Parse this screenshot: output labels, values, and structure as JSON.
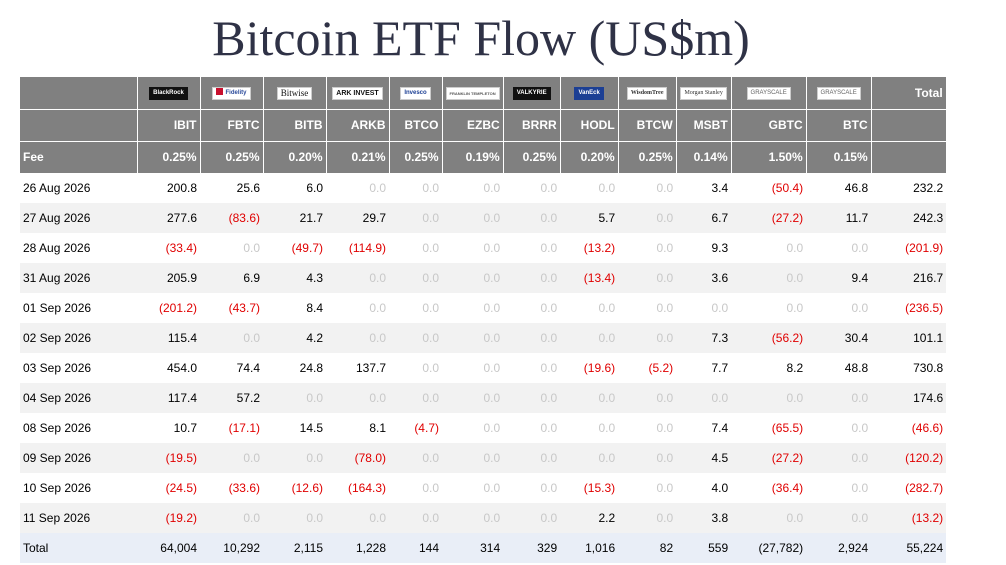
{
  "title": "Bitcoin ETF Flow (US$m)",
  "issuers": [
    {
      "name": "BlackRock",
      "ticker": "IBIT",
      "fee": "0.25%"
    },
    {
      "name": "Fidelity",
      "ticker": "FBTC",
      "fee": "0.25%"
    },
    {
      "name": "Bitwise",
      "ticker": "BITB",
      "fee": "0.20%"
    },
    {
      "name": "ARK INVEST",
      "ticker": "ARKB",
      "fee": "0.21%"
    },
    {
      "name": "Invesco",
      "ticker": "BTCO",
      "fee": "0.25%"
    },
    {
      "name": "FRANKLIN TEMPLETON",
      "ticker": "EZBC",
      "fee": "0.19%"
    },
    {
      "name": "VALKYRIE",
      "ticker": "BRRR",
      "fee": "0.25%"
    },
    {
      "name": "VanEck",
      "ticker": "HODL",
      "fee": "0.20%"
    },
    {
      "name": "WisdomTree",
      "ticker": "BTCW",
      "fee": "0.25%"
    },
    {
      "name": "Morgan Stanley",
      "ticker": "MSBT",
      "fee": "0.14%"
    },
    {
      "name": "GRAYSCALE",
      "ticker": "GBTC",
      "fee": "1.50%"
    },
    {
      "name": "GRAYSCALE",
      "ticker": "BTC",
      "fee": "0.15%"
    }
  ],
  "header": {
    "total_label": "Total",
    "fee_label": "Fee"
  },
  "rows": [
    {
      "date": "26 Aug 2026",
      "values": [
        "200.8",
        "25.6",
        "6.0",
        "0.0",
        "0.0",
        "0.0",
        "0.0",
        "0.0",
        "0.0",
        "3.4",
        "(50.4)",
        "46.8"
      ],
      "total": "232.2"
    },
    {
      "date": "27 Aug 2026",
      "values": [
        "277.6",
        "(83.6)",
        "21.7",
        "29.7",
        "0.0",
        "0.0",
        "0.0",
        "5.7",
        "0.0",
        "6.7",
        "(27.2)",
        "11.7"
      ],
      "total": "242.3"
    },
    {
      "date": "28 Aug 2026",
      "values": [
        "(33.4)",
        "0.0",
        "(49.7)",
        "(114.9)",
        "0.0",
        "0.0",
        "0.0",
        "(13.2)",
        "0.0",
        "9.3",
        "0.0",
        "0.0"
      ],
      "total": "(201.9)"
    },
    {
      "date": "31 Aug 2026",
      "values": [
        "205.9",
        "6.9",
        "4.3",
        "0.0",
        "0.0",
        "0.0",
        "0.0",
        "(13.4)",
        "0.0",
        "3.6",
        "0.0",
        "9.4"
      ],
      "total": "216.7"
    },
    {
      "date": "01 Sep 2026",
      "values": [
        "(201.2)",
        "(43.7)",
        "8.4",
        "0.0",
        "0.0",
        "0.0",
        "0.0",
        "0.0",
        "0.0",
        "0.0",
        "0.0",
        "0.0"
      ],
      "total": "(236.5)"
    },
    {
      "date": "02 Sep 2026",
      "values": [
        "115.4",
        "0.0",
        "4.2",
        "0.0",
        "0.0",
        "0.0",
        "0.0",
        "0.0",
        "0.0",
        "7.3",
        "(56.2)",
        "30.4"
      ],
      "total": "101.1"
    },
    {
      "date": "03 Sep 2026",
      "values": [
        "454.0",
        "74.4",
        "24.8",
        "137.7",
        "0.0",
        "0.0",
        "0.0",
        "(19.6)",
        "(5.2)",
        "7.7",
        "8.2",
        "48.8"
      ],
      "total": "730.8"
    },
    {
      "date": "04 Sep 2026",
      "values": [
        "117.4",
        "57.2",
        "0.0",
        "0.0",
        "0.0",
        "0.0",
        "0.0",
        "0.0",
        "0.0",
        "0.0",
        "0.0",
        "0.0"
      ],
      "total": "174.6"
    },
    {
      "date": "08 Sep 2026",
      "values": [
        "10.7",
        "(17.1)",
        "14.5",
        "8.1",
        "(4.7)",
        "0.0",
        "0.0",
        "0.0",
        "0.0",
        "7.4",
        "(65.5)",
        "0.0"
      ],
      "total": "(46.6)"
    },
    {
      "date": "09 Sep 2026",
      "values": [
        "(19.5)",
        "0.0",
        "0.0",
        "(78.0)",
        "0.0",
        "0.0",
        "0.0",
        "0.0",
        "0.0",
        "4.5",
        "(27.2)",
        "0.0"
      ],
      "total": "(120.2)"
    },
    {
      "date": "10 Sep 2026",
      "values": [
        "(24.5)",
        "(33.6)",
        "(12.6)",
        "(164.3)",
        "0.0",
        "0.0",
        "0.0",
        "(15.3)",
        "0.0",
        "4.0",
        "(36.4)",
        "0.0"
      ],
      "total": "(282.7)"
    },
    {
      "date": "11 Sep 2026",
      "values": [
        "(19.2)",
        "0.0",
        "0.0",
        "0.0",
        "0.0",
        "0.0",
        "0.0",
        "2.2",
        "0.0",
        "3.8",
        "0.0",
        "0.0"
      ],
      "total": "(13.2)"
    }
  ],
  "totals": {
    "label": "Total",
    "values": [
      "64,004",
      "10,292",
      "2,115",
      "1,228",
      "144",
      "314",
      "329",
      "1,016",
      "82",
      "559",
      "(27,782)",
      "2,924"
    ],
    "total": "55,224"
  },
  "colors": {
    "header_bg": "#808080",
    "negative": "#e00000",
    "zero": "#c8c8c8",
    "alt_row": "#f2f2f2",
    "total_row": "#e9eef7",
    "title": "#2f3246"
  }
}
